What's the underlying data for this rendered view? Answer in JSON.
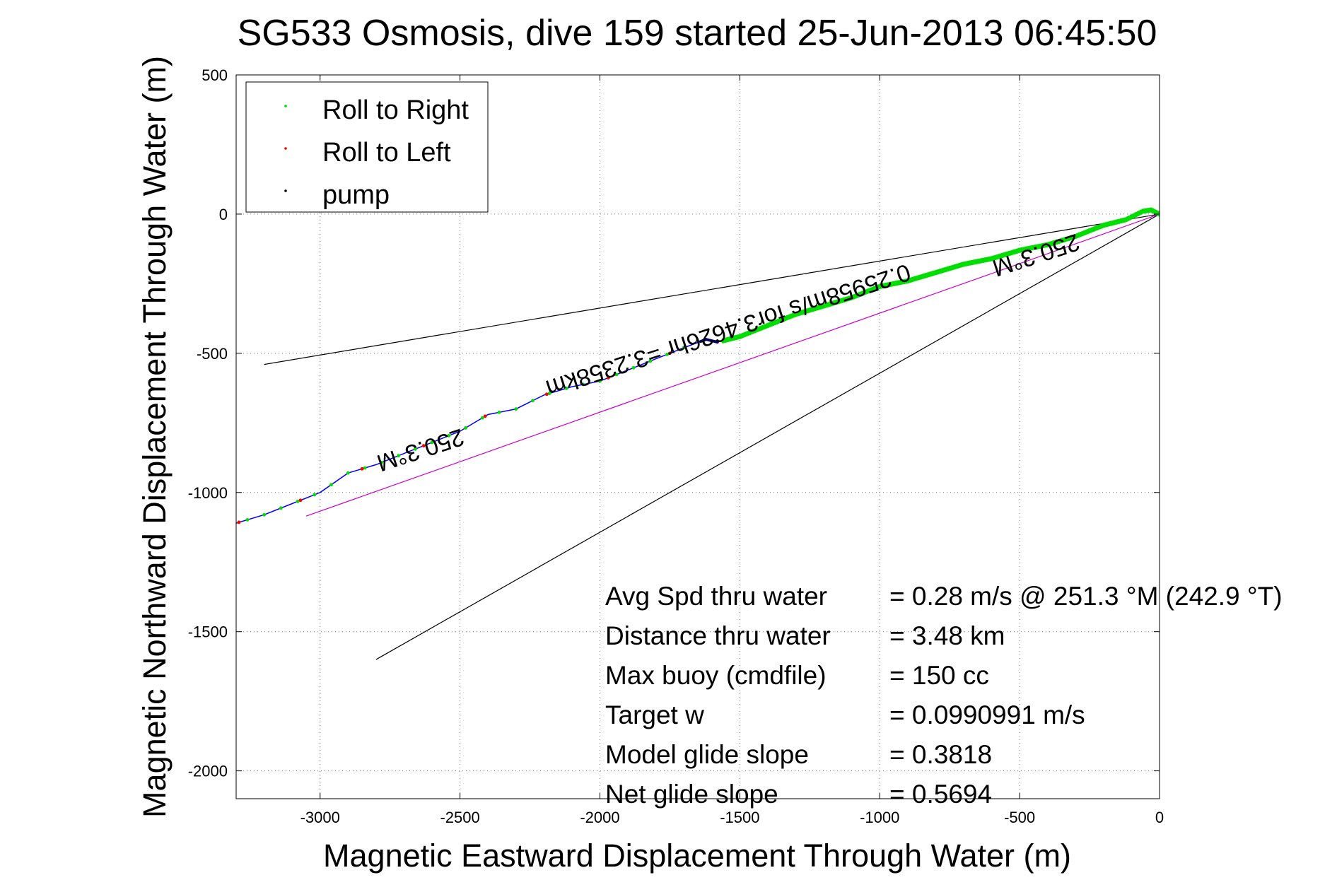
{
  "chart_data": {
    "type": "line",
    "title": "SG533 Osmosis, dive 159 started 25-Jun-2013 06:45:50",
    "xlabel": "Magnetic Eastward Displacement Through Water (m)",
    "ylabel": "Magnetic Northward Displacement Through Water (m)",
    "xlim": [
      -3300,
      0
    ],
    "ylim": [
      -2100,
      500
    ],
    "xticks": [
      -3000,
      -2500,
      -2000,
      -1500,
      -1000,
      -500,
      0
    ],
    "yticks": [
      500,
      0,
      -500,
      -1000,
      -1500,
      -2000
    ],
    "grid": true,
    "legend_position": "top-left",
    "legend": [
      {
        "name": "Roll to Right",
        "color": "#00dd00"
      },
      {
        "name": "Roll to Left",
        "color": "#ff0000"
      },
      {
        "name": "pump",
        "color": "#000000"
      }
    ],
    "track": {
      "color": "#0000ff",
      "x": [
        0,
        -30,
        -60,
        -120,
        -200,
        -300,
        -400,
        -500,
        -600,
        -700,
        -800,
        -900,
        -1000,
        -1100,
        -1200,
        -1300,
        -1400,
        -1500,
        -1580,
        -1620,
        -1700,
        -1800,
        -1900,
        -2000,
        -2100,
        -2200,
        -2300,
        -2400,
        -2500,
        -2600,
        -2700,
        -2800,
        -2900,
        -3000,
        -3100,
        -3200,
        -3300
      ],
      "y": [
        0,
        15,
        10,
        -20,
        -40,
        -80,
        -110,
        -130,
        -160,
        -180,
        -210,
        -240,
        -260,
        -300,
        -330,
        -360,
        -400,
        -440,
        -460,
        -450,
        -480,
        -520,
        -560,
        -600,
        -620,
        -650,
        -700,
        -720,
        -780,
        -820,
        -860,
        -900,
        -930,
        -1000,
        -1040,
        -1080,
        -1110
      ]
    },
    "reference_lines": [
      {
        "name": "heading-wedge-upper",
        "color": "#000000",
        "x": [
          0,
          -3200
        ],
        "y": [
          0,
          -540
        ]
      },
      {
        "name": "heading-wedge-lower",
        "color": "#000000",
        "x": [
          0,
          -2800
        ],
        "y": [
          0,
          -1600
        ]
      },
      {
        "name": "current-vector",
        "color": "#cc00cc",
        "x": [
          0,
          -3050
        ],
        "y": [
          0,
          -1085
        ]
      }
    ],
    "annotations": [
      {
        "text": "250.3°M",
        "x": -2650,
        "y": -820,
        "rotation": -18
      },
      {
        "text": "250.3°M",
        "x": -450,
        "y": -120,
        "rotation": -18
      },
      {
        "text": "0.25958m/s for3.4626hr =3.2358km",
        "x": -1550,
        "y": -390,
        "rotation": -18
      }
    ],
    "stats": [
      {
        "label": "Avg Spd thru water",
        "value": "=  0.28 m/s @ 251.3 °M (242.9 °T)"
      },
      {
        "label": "Distance thru water",
        "value": "=  3.48 km"
      },
      {
        "label": "Max buoy (cmdfile)",
        "value": "= 150 cc"
      },
      {
        "label": "Target w",
        "value": "= 0.0990991 m/s"
      },
      {
        "label": "Model glide slope",
        "value": "= 0.3818"
      },
      {
        "label": "Net glide slope",
        "value": "= 0.5694"
      }
    ]
  }
}
